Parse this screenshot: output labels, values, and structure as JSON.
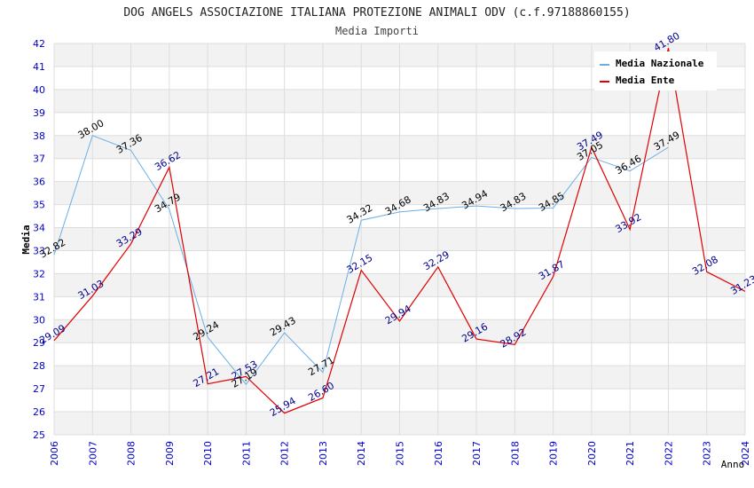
{
  "chart_data": {
    "type": "line",
    "title": "DOG ANGELS ASSOCIAZIONE ITALIANA PROTEZIONE ANIMALI ODV (c.f.97188860155)",
    "subtitle": "Media Importi",
    "xlabel": "Anno",
    "ylabel": "Media",
    "ylim": [
      25,
      42
    ],
    "x": [
      "2006",
      "2007",
      "2008",
      "2009",
      "2010",
      "2011",
      "2012",
      "2013",
      "2014",
      "2015",
      "2016",
      "2017",
      "2018",
      "2019",
      "2020",
      "2021",
      "2022",
      "2023",
      "2024"
    ],
    "yticks": [
      "25",
      "26",
      "27",
      "28",
      "29",
      "30",
      "31",
      "32",
      "33",
      "34",
      "35",
      "36",
      "37",
      "38",
      "39",
      "40",
      "41",
      "42"
    ],
    "series": [
      {
        "name": "Media Nazionale",
        "color": "#6aaee6",
        "label_color": "#000000",
        "values": [
          32.82,
          38.0,
          37.36,
          34.79,
          29.24,
          27.19,
          29.43,
          27.71,
          34.32,
          34.68,
          34.83,
          34.94,
          34.83,
          34.85,
          37.05,
          36.46,
          37.49,
          null,
          null
        ],
        "labels": [
          "32.82",
          "38.00",
          "37.36",
          "34.79",
          "29.24",
          "27.19",
          "29.43",
          "27.71",
          "34.32",
          "34.68",
          "34.83",
          "34.94",
          "34.83",
          "34.85",
          "37.05",
          "36.46",
          "37.49",
          "",
          ""
        ]
      },
      {
        "name": "Media Ente",
        "color": "#e00000",
        "label_color": "#00008b",
        "values": [
          29.09,
          31.03,
          33.29,
          36.62,
          27.21,
          27.53,
          25.94,
          26.6,
          32.15,
          29.94,
          32.29,
          29.16,
          28.92,
          31.87,
          37.49,
          33.92,
          41.8,
          32.08,
          31.23
        ],
        "labels": [
          "29.09",
          "31.03",
          "33.29",
          "36.62",
          "27.21",
          "27.53",
          "25.94",
          "26.60",
          "32.15",
          "29.94",
          "32.29",
          "29.16",
          "28.92",
          "31.87",
          "37.49",
          "33.92",
          "41.80",
          "32.08",
          "31.23"
        ]
      }
    ],
    "grid": true,
    "legend": "top-right",
    "colors": {
      "axis_text": "#0000cc",
      "band": "#f2f2f2"
    }
  }
}
